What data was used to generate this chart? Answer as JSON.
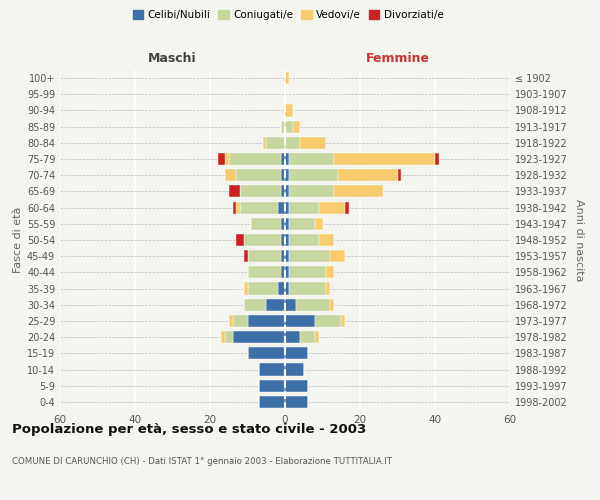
{
  "age_groups": [
    "0-4",
    "5-9",
    "10-14",
    "15-19",
    "20-24",
    "25-29",
    "30-34",
    "35-39",
    "40-44",
    "45-49",
    "50-54",
    "55-59",
    "60-64",
    "65-69",
    "70-74",
    "75-79",
    "80-84",
    "85-89",
    "90-94",
    "95-99",
    "100+"
  ],
  "birth_years": [
    "1998-2002",
    "1993-1997",
    "1988-1992",
    "1983-1987",
    "1978-1982",
    "1973-1977",
    "1968-1972",
    "1963-1967",
    "1958-1962",
    "1953-1957",
    "1948-1952",
    "1943-1947",
    "1938-1942",
    "1933-1937",
    "1928-1932",
    "1923-1927",
    "1918-1922",
    "1913-1917",
    "1908-1912",
    "1903-1907",
    "≤ 1902"
  ],
  "males": {
    "celibi": [
      7,
      7,
      7,
      10,
      14,
      10,
      5,
      2,
      1,
      1,
      1,
      1,
      2,
      1,
      1,
      1,
      0,
      0,
      0,
      0,
      0
    ],
    "coniugati": [
      0,
      0,
      0,
      0,
      2,
      4,
      6,
      8,
      9,
      9,
      10,
      8,
      10,
      11,
      12,
      14,
      5,
      1,
      0,
      0,
      0
    ],
    "vedovi": [
      0,
      0,
      0,
      0,
      1,
      1,
      0,
      1,
      0,
      0,
      0,
      0,
      1,
      0,
      3,
      1,
      1,
      0,
      0,
      0,
      0
    ],
    "divorziati": [
      0,
      0,
      0,
      0,
      0,
      0,
      0,
      0,
      0,
      1,
      2,
      0,
      1,
      3,
      0,
      2,
      0,
      0,
      0,
      0,
      0
    ]
  },
  "females": {
    "nubili": [
      6,
      6,
      5,
      6,
      4,
      8,
      3,
      1,
      1,
      1,
      1,
      1,
      1,
      1,
      1,
      1,
      0,
      0,
      0,
      0,
      0
    ],
    "coniugate": [
      0,
      0,
      0,
      0,
      4,
      7,
      9,
      10,
      10,
      11,
      8,
      7,
      8,
      12,
      13,
      12,
      4,
      2,
      0,
      0,
      0
    ],
    "vedove": [
      0,
      0,
      0,
      0,
      1,
      1,
      1,
      1,
      2,
      4,
      4,
      2,
      7,
      13,
      16,
      27,
      7,
      2,
      2,
      0,
      1
    ],
    "divorziate": [
      0,
      0,
      0,
      0,
      0,
      0,
      0,
      0,
      0,
      0,
      0,
      0,
      1,
      0,
      1,
      1,
      0,
      0,
      0,
      0,
      0
    ]
  },
  "colors": {
    "celibi_nubili": "#3d6fa8",
    "coniugati": "#c5d69e",
    "vedovi": "#f7cb6e",
    "divorziati": "#cc2222"
  },
  "xlim": 60,
  "title": "Popolazione per età, sesso e stato civile - 2003",
  "subtitle": "COMUNE DI CARUNCHIO (CH) - Dati ISTAT 1° gennaio 2003 - Elaborazione TUTTITALIA.IT",
  "xlabel_left": "Maschi",
  "xlabel_right": "Femmine",
  "ylabel_left": "Fasce di età",
  "ylabel_right": "Anni di nascita",
  "legend_labels": [
    "Celibi/Nubili",
    "Coniugati/e",
    "Vedovi/e",
    "Divorziati/e"
  ],
  "bg_color": "#f5f5ef",
  "bar_height": 0.75
}
